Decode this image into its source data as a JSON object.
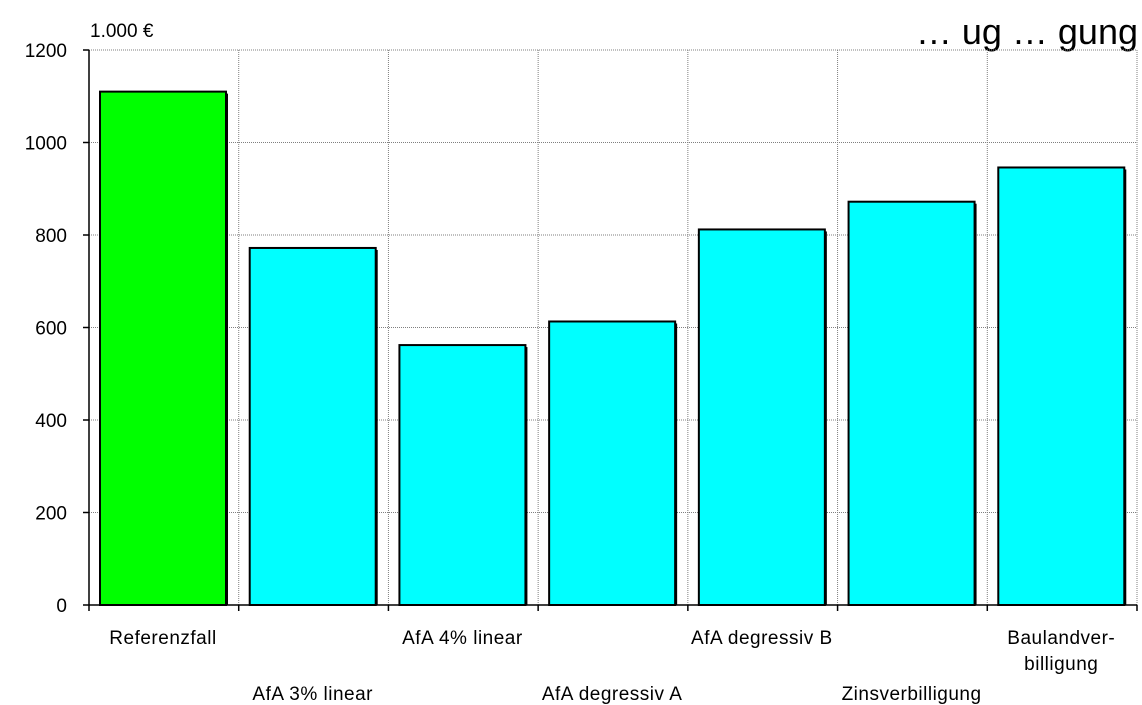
{
  "colors": {
    "reference": "#00ff00",
    "scenario": "#00ffff",
    "grid": "#7f7f7f",
    "axis": "#000000"
  },
  "chart_data": {
    "type": "bar",
    "title": "… ug … gung",
    "ylabel": "1.000 €",
    "xlabel": "",
    "ylim": [
      0,
      1200
    ],
    "yticks": [
      0,
      200,
      400,
      600,
      800,
      1000,
      1200
    ],
    "grid": true,
    "legend": "none",
    "categories": [
      "Referenzfall",
      "AfA 3% linear",
      "AfA 4% linear",
      "AfA degressiv A",
      "AfA degressiv B",
      "Zinsverbilligung",
      "Baulandver-billigung"
    ],
    "category_lines": [
      [
        "Referenzfall"
      ],
      [
        "AfA 3% linear"
      ],
      [
        "AfA 4% linear"
      ],
      [
        "AfA degressiv A"
      ],
      [
        "AfA degressiv B"
      ],
      [
        "Zinsverbilligung"
      ],
      [
        "Baulandver-",
        "billigung"
      ]
    ],
    "values": [
      1110,
      772,
      562,
      613,
      812,
      872,
      946
    ],
    "bar_colors": [
      "reference",
      "scenario",
      "scenario",
      "scenario",
      "scenario",
      "scenario",
      "scenario"
    ]
  }
}
